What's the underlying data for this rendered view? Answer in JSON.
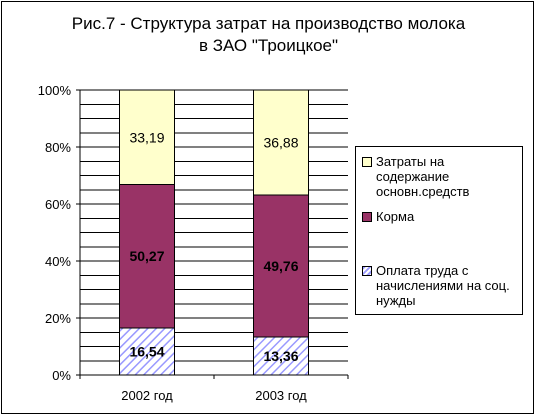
{
  "chart_data": {
    "type": "bar",
    "stacked": "percent",
    "title_line1": "Рис.7 - Структура затрат на производство молока",
    "title_line2": "в ЗАО \"Троицкое\"",
    "categories": [
      "2002 год",
      "2003 год"
    ],
    "yticks": [
      "0%",
      "20%",
      "40%",
      "60%",
      "80%",
      "100%"
    ],
    "ylim": [
      0,
      100
    ],
    "grid": true,
    "legend_position": "right",
    "series": [
      {
        "name": "Оплата труда с начислениями на соц. нужды",
        "values": [
          16.54,
          13.36
        ],
        "labels": [
          "16,54",
          "13,36"
        ],
        "color": "#9999ff",
        "pattern": "hatch"
      },
      {
        "name": "Корма",
        "values": [
          50.27,
          49.76
        ],
        "labels": [
          "50,27",
          "49,76"
        ],
        "color": "#993366",
        "pattern": "solid"
      },
      {
        "name": "Затраты на содержание основн.средств",
        "values": [
          33.19,
          36.88
        ],
        "labels": [
          "33,19",
          "36,88"
        ],
        "color": "#ffffcc",
        "pattern": "solid"
      }
    ]
  },
  "legend": {
    "item1_line1": "Затраты на",
    "item1_line2": "содержание",
    "item1_line3": "основн.средств",
    "item2": "Корма",
    "item3_line1": "Оплата труда с",
    "item3_line2": "начислениями на соц.",
    "item3_line3": "нужды"
  }
}
